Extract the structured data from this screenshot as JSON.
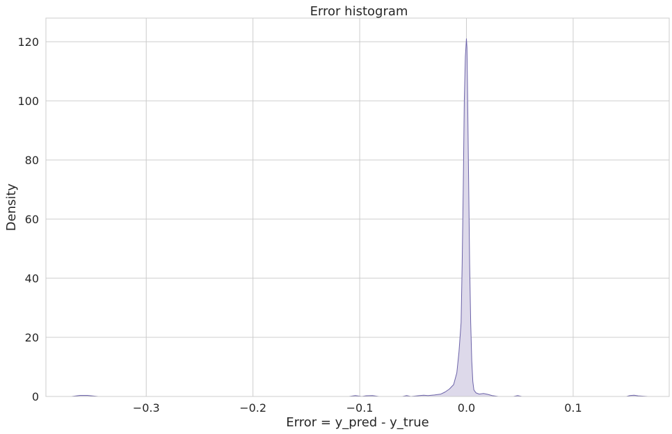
{
  "chart_data": {
    "type": "area",
    "title": "Error histogram",
    "xlabel": "Error = y_pred - y_true",
    "ylabel": "Density",
    "xlim": [
      -0.394,
      0.19
    ],
    "ylim": [
      0,
      128
    ],
    "x_ticks": [
      {
        "value": -0.3,
        "label": "−0.3"
      },
      {
        "value": -0.2,
        "label": "−0.2"
      },
      {
        "value": -0.1,
        "label": "−0.1"
      },
      {
        "value": 0.0,
        "label": "0.0"
      },
      {
        "value": 0.1,
        "label": "0.1"
      }
    ],
    "y_ticks": [
      {
        "value": 0,
        "label": "0"
      },
      {
        "value": 20,
        "label": "20"
      },
      {
        "value": 40,
        "label": "40"
      },
      {
        "value": 60,
        "label": "60"
      },
      {
        "value": 80,
        "label": "80"
      },
      {
        "value": 100,
        "label": "100"
      },
      {
        "value": 120,
        "label": "120"
      }
    ],
    "grid": true,
    "colors": {
      "line": "#6b62a8",
      "fill": "#ddd9ea",
      "grid": "#cccccc"
    },
    "series": [
      {
        "x": [
          -0.39,
          -0.37,
          -0.362,
          -0.355,
          -0.345,
          -0.2,
          -0.11,
          -0.104,
          -0.098,
          -0.094,
          -0.088,
          -0.082,
          -0.06,
          -0.056,
          -0.052,
          -0.044,
          -0.04,
          -0.036,
          -0.03,
          -0.024,
          -0.02,
          -0.016,
          -0.012,
          -0.009,
          -0.007,
          -0.005,
          -0.004,
          -0.003,
          -0.002,
          -0.001,
          0.0,
          0.0005,
          0.001,
          0.002,
          0.003,
          0.004,
          0.005,
          0.006,
          0.007,
          0.009,
          0.012,
          0.016,
          0.02,
          0.024,
          0.03,
          0.044,
          0.048,
          0.052,
          0.06,
          0.15,
          0.153,
          0.157,
          0.161,
          0.17,
          0.19
        ],
        "y": [
          0,
          0,
          0.35,
          0.35,
          0,
          0,
          0,
          0.3,
          0,
          0.25,
          0.3,
          0,
          0,
          0.3,
          0,
          0.3,
          0.4,
          0.3,
          0.5,
          0.8,
          1.5,
          2.5,
          4,
          8,
          15,
          25,
          45,
          70,
          100,
          115,
          121,
          118,
          105,
          75,
          45,
          25,
          12,
          5,
          2.2,
          1.2,
          0.8,
          1.0,
          0.7,
          0.3,
          0,
          0,
          0.3,
          0,
          0,
          0,
          0.3,
          0.4,
          0.2,
          0,
          0
        ]
      }
    ]
  }
}
